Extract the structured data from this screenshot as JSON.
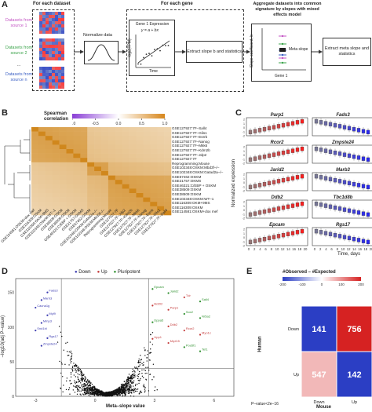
{
  "panel_a": {
    "letter": "A",
    "for_each_dataset": "For each dataset",
    "sources": [
      "Datasets from source 1",
      "Datasets from source 2",
      "...",
      "Datasets from source n"
    ],
    "source_colors": [
      "#c455c4",
      "#3aa34a",
      "#333333",
      "#3a5fc4"
    ],
    "normalize": "Normalize data",
    "for_each_gene": "For each gene",
    "gene1_expression": "Gene 1 Expression",
    "equation": "y = a + bx",
    "axis_y": "log2(TPM)",
    "axis_x": "Time",
    "extract_slope": "Extract slope b and statistics",
    "aggregate": "Aggregate datasets into common signature by slopes with mixed effects model",
    "meta_slope": "Meta slope",
    "slope_axis": "Slope coefficient, b",
    "gene1": "Gene 1",
    "extract_meta": "Extract meta slope and statistics"
  },
  "panel_b": {
    "letter": "B",
    "legend_title": "Spearman correlation",
    "legend_ticks": [
      "-1.0",
      "-0.5",
      "0.0",
      "0.5",
      "1.0"
    ],
    "row_labels": [
      "GSE127927:7F–Sall4",
      "GSE127927:7F–Glis1",
      "GSE127927:7F–Esrrb",
      "GSE127927:7F–Nanog",
      "GSE127927:7F–Mkk6",
      "GSE127927:7F–Kdm2b",
      "GSE127927:7F–Jdp2",
      "GSE127927:7F",
      "Reprogramming:Mouse",
      "GSE102348:OSKM:Mbd3f–/–",
      "GSE102348:OSKM:Gatad2a–/–",
      "GSE67462:OSKM",
      "GSE21757:OKMS",
      "GSE46321:C/EBP + OSKM",
      "GSE38509:OSKM",
      "GSE38509:OSKM",
      "GSE102348:OSKM:WT–1",
      "GSE116309:OKM+9MS",
      "GSE116309:OSKM",
      "GSE114581:OSKM+dox mef"
    ],
    "col_labels": [
      "GSE114581:OSKM+dox mef",
      "GSE116309:OSKM",
      "GSE116309:OKM+9MS",
      "GSE102348:OSKM:WT–1",
      "GSE38509:OSKM",
      "GSE38509:OSKM",
      "GSE46321:C/EBP + OSKM",
      "GSE21757:OKMS",
      "GSE67462:OSKM",
      "GSE102348:OSKM:Gatad2a–/–",
      "GSE102348:OSKM:Mbd3f–/–",
      "Reprogramming:Mouse",
      "GSE127927:7F",
      "GSE127927:7F–Jdp2",
      "GSE127927:7F–Kdm2b",
      "GSE127927:7F–Mkk6",
      "GSE127927:7F–Nanog",
      "GSE127927:7F–Esrrb",
      "GSE127927:7F–Glis1",
      "GSE127927:7F–Sall4"
    ]
  },
  "panel_c": {
    "letter": "C",
    "ylabel": "Normalized expression",
    "xlabel": "Time, days",
    "x_ticks": [
      "0",
      "2",
      "4",
      "6",
      "8",
      "10",
      "12",
      "14",
      "16",
      "18",
      "20"
    ],
    "y_ticks": [
      "2",
      "1",
      "0",
      "-1",
      "-2"
    ],
    "genes": [
      {
        "name": "Parp1",
        "trend": "up"
      },
      {
        "name": "Fads3",
        "trend": "down"
      },
      {
        "name": "Rcor2",
        "trend": "up"
      },
      {
        "name": "Zmpste24",
        "trend": "down"
      },
      {
        "name": "Jarid2",
        "trend": "up"
      },
      {
        "name": "Marb3",
        "trend": "down"
      },
      {
        "name": "Ddb2",
        "trend": "up"
      },
      {
        "name": "Tbc1d8b",
        "trend": "down"
      },
      {
        "name": "Epcam",
        "trend": "up"
      },
      {
        "name": "Rgs17",
        "trend": "down"
      }
    ],
    "up_color": "#d62728",
    "down_color": "#2a2aa8"
  },
  "panel_d": {
    "letter": "D",
    "legend": [
      "Down",
      "Up",
      "Pluripotent"
    ],
    "ylabel": "–log10(adj P–value)",
    "xlabel": "Meta–slope value",
    "x_ticks": [
      "-3",
      "0",
      "3",
      "6"
    ],
    "y_ticks": [
      "0",
      "50",
      "100",
      "150"
    ],
    "down_genes": [
      "Fads3",
      "Marb3",
      "Cacna1g",
      "Myl9",
      "Mmp3",
      "Snd1bl",
      "Rgs17",
      "Zmpste24"
    ],
    "up_genes": [
      "Epcam",
      "Jarid2",
      "Tdr",
      "Sall4",
      "Bcl2l2",
      "Parp1",
      "Sox2",
      "Nr5a2",
      "Dppa5",
      "Ddb2",
      "Rcor2",
      "Myo1c",
      "Upp1",
      "Mrpl15",
      "Pou5f1",
      "Tet1"
    ],
    "down_color": "#3b3bb0",
    "up_color": "#c43a3a",
    "pluri_color": "#2c8f2c"
  },
  "panel_e": {
    "letter": "E",
    "title": "#Observed – #Expected",
    "scale_ticks": [
      "-200",
      "-100",
      "0",
      "100",
      "200"
    ],
    "row_labels": [
      "Down",
      "Up"
    ],
    "col_labels": [
      "Down",
      "Up"
    ],
    "ylabel": "Human",
    "xlabel": "Mouse",
    "cells": [
      [
        141,
        756
      ],
      [
        547,
        142
      ]
    ],
    "pvalue": "P–value<2e–16"
  }
}
